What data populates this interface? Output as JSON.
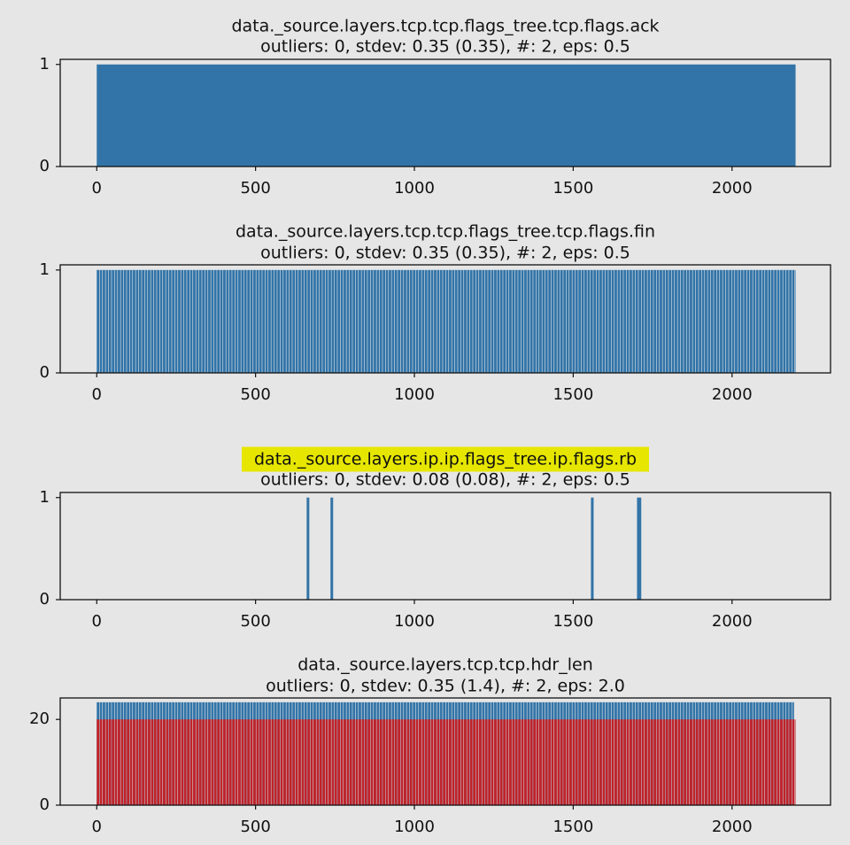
{
  "figure": {
    "background": "#e6e6e6"
  },
  "chart_data": [
    {
      "type": "bar",
      "title": "data._source.layers.tcp.tcp.flags_tree.tcp.flags.ack",
      "subtitle": "outliers: 0, stdev: 0.35 (0.35), #: 2, eps: 0.5",
      "title_highlighted": false,
      "xlim": [
        -115,
        2310
      ],
      "ylim": [
        0,
        1.05
      ],
      "xticks": [
        0,
        500,
        1000,
        1500,
        2000
      ],
      "yticks": [
        0,
        1
      ],
      "series": [
        {
          "color": "#3274a8",
          "style": "solid",
          "x_range": [
            0,
            2200
          ],
          "value": 1
        }
      ]
    },
    {
      "type": "bar",
      "title": "data._source.layers.tcp.tcp.flags_tree.tcp.flags.fin",
      "subtitle": "outliers: 0, stdev: 0.35 (0.35), #: 2, eps: 0.5",
      "title_highlighted": false,
      "xlim": [
        -115,
        2310
      ],
      "ylim": [
        0,
        1.05
      ],
      "xticks": [
        0,
        500,
        1000,
        1500,
        2000
      ],
      "yticks": [
        0,
        1
      ],
      "series": [
        {
          "color": "#3274a8",
          "style": "dense",
          "x_range": [
            0,
            2200
          ],
          "value": 1
        }
      ]
    },
    {
      "type": "bar",
      "title": "data._source.layers.ip.ip.flags_tree.ip.flags.rb",
      "subtitle": "outliers: 0, stdev: 0.08 (0.08), #: 2, eps: 0.5",
      "title_highlighted": true,
      "highlight_color": "#e6e600",
      "xlim": [
        -115,
        2310
      ],
      "ylim": [
        0,
        1.05
      ],
      "xticks": [
        0,
        500,
        1000,
        1500,
        2000
      ],
      "yticks": [
        0,
        1
      ],
      "series": [
        {
          "color": "#3274a8",
          "style": "spikes",
          "x": [
            665,
            740,
            1560,
            1705,
            1710
          ],
          "value": 1
        }
      ]
    },
    {
      "type": "bar",
      "title": "data._source.layers.tcp.tcp.hdr_len",
      "subtitle": "outliers: 0, stdev: 0.35 (1.4), #: 2, eps: 2.0",
      "title_highlighted": false,
      "xlim": [
        -115,
        2310
      ],
      "ylim": [
        0,
        25
      ],
      "xticks": [
        0,
        500,
        1000,
        1500,
        2000
      ],
      "yticks": [
        0,
        20
      ],
      "series": [
        {
          "color": "#3274a8",
          "style": "dense",
          "x_range": [
            0,
            2195
          ],
          "value": 24
        },
        {
          "color": "#c0232a",
          "style": "dense",
          "x_range": [
            0,
            2200
          ],
          "value": 20
        }
      ]
    }
  ]
}
